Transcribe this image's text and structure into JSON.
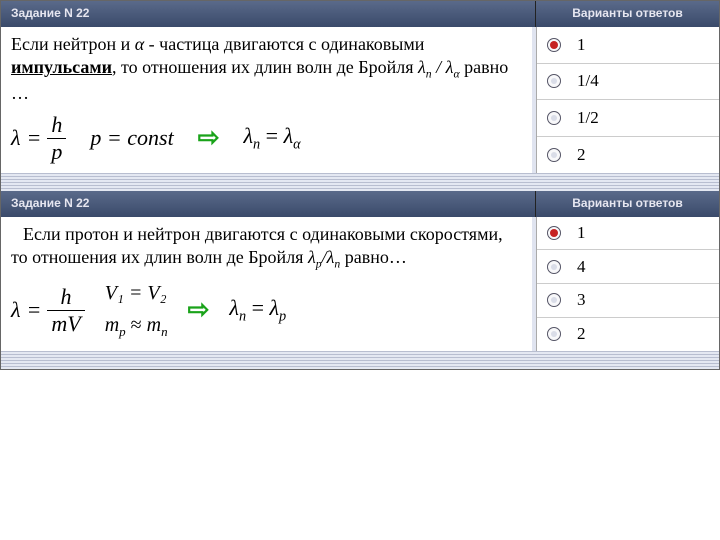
{
  "colors": {
    "header_grad_top": "#5a6a8a",
    "header_grad_bottom": "#3a4a6a",
    "header_text": "#e6e6f0",
    "radio_selected": "#c62222",
    "arrow": "#1aa31a",
    "stripe_dark": "#b8bed0",
    "stripe_light": "#e4e8f2"
  },
  "task1": {
    "header_left": "Задание N 22",
    "header_right": "Варианты ответов",
    "question_pre": "Если нейтрон и ",
    "question_particle": "α",
    "question_mid": " - частица двигаются с одинаковыми ",
    "question_emph": "импульсами",
    "question_post": ", то отношения их длин волн де Бройля ",
    "ratio_prefix": "λ",
    "ratio_n": "n",
    "ratio_a": "α",
    "question_tail": " равно …",
    "formula_lambda": "λ",
    "formula_h": "h",
    "formula_p": "p",
    "formula_const": "p = const",
    "result_lhs": "λ",
    "result_n": "n",
    "result_eq": "=",
    "result_rhs": "λ",
    "result_a": "α",
    "answers": [
      {
        "label": "1",
        "selected": true
      },
      {
        "label": "1/4",
        "selected": false
      },
      {
        "label": "1/2",
        "selected": false
      },
      {
        "label": "2",
        "selected": false
      }
    ]
  },
  "task2": {
    "header_left": "Задание N 22",
    "header_right": "Варианты ответов",
    "question_pre": "Если протон и нейтрон двигаются с одинаковыми ",
    "question_emph": "скоростями",
    "question_post": ", то отношения их длин волн де Бройля ",
    "ratio_prefix": "λ",
    "ratio_p": "p",
    "ratio_n": "n",
    "question_tail": " равно…",
    "formula_lambda": "λ",
    "formula_h": "h",
    "formula_mv": "mV",
    "formula_v": "V",
    "formula_v1v2_lhs": "V₁",
    "formula_v1v2_rhs": "V₂",
    "formula_mp": "m",
    "formula_mp_sub": "p",
    "formula_approx": "≈",
    "formula_mn": "m",
    "formula_mn_sub": "n",
    "result_lhs": "λ",
    "result_n": "n",
    "result_eq": "=",
    "result_rhs": "λ",
    "result_p": "p",
    "answers": [
      {
        "label": "1",
        "selected": true
      },
      {
        "label": "4",
        "selected": false
      },
      {
        "label": "3",
        "selected": false
      },
      {
        "label": "2",
        "selected": false
      }
    ]
  }
}
